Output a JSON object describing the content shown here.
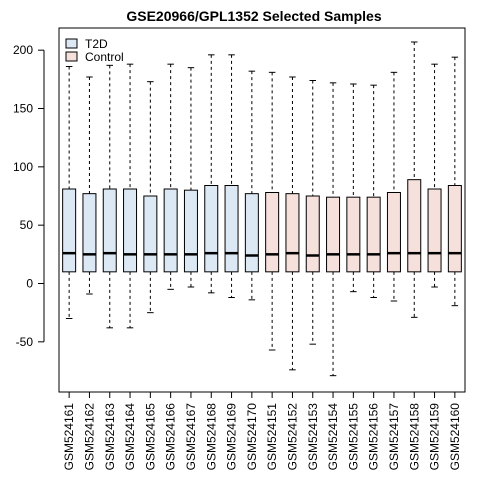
{
  "chart_data": {
    "type": "box",
    "title": "GSE20966/GPL1352 Selected Samples",
    "xlabel": "",
    "ylabel": "",
    "ylim": [
      -93,
      219
    ],
    "yticks": [
      -50,
      0,
      50,
      100,
      150,
      200
    ],
    "grid": false,
    "legend": {
      "placement": "top-left",
      "entries": [
        {
          "name": "T2D",
          "color": "#dce9f5"
        },
        {
          "name": "Control",
          "color": "#f6e0dc"
        }
      ]
    },
    "categories": [
      "GSM524161",
      "GSM524162",
      "GSM524163",
      "GSM524164",
      "GSM524165",
      "GSM524166",
      "GSM524167",
      "GSM524168",
      "GSM524169",
      "GSM524170",
      "GSM524151",
      "GSM524152",
      "GSM524153",
      "GSM524154",
      "GSM524155",
      "GSM524156",
      "GSM524157",
      "GSM524158",
      "GSM524159",
      "GSM524160"
    ],
    "groups": [
      "T2D",
      "T2D",
      "T2D",
      "T2D",
      "T2D",
      "T2D",
      "T2D",
      "T2D",
      "T2D",
      "T2D",
      "Control",
      "Control",
      "Control",
      "Control",
      "Control",
      "Control",
      "Control",
      "Control",
      "Control",
      "Control"
    ],
    "boxes": [
      {
        "min": -30,
        "q1": 10,
        "median": 26,
        "q3": 81,
        "max": 186
      },
      {
        "min": -9,
        "q1": 10,
        "median": 25,
        "q3": 77,
        "max": 177
      },
      {
        "min": -38,
        "q1": 10,
        "median": 26,
        "q3": 81,
        "max": 187
      },
      {
        "min": -38,
        "q1": 10,
        "median": 25,
        "q3": 81,
        "max": 188
      },
      {
        "min": -25,
        "q1": 10,
        "median": 25,
        "q3": 75,
        "max": 173
      },
      {
        "min": -5,
        "q1": 10,
        "median": 25,
        "q3": 81,
        "max": 188
      },
      {
        "min": -3,
        "q1": 10,
        "median": 25,
        "q3": 80,
        "max": 185
      },
      {
        "min": -8,
        "q1": 10,
        "median": 26,
        "q3": 84,
        "max": 196
      },
      {
        "min": -12,
        "q1": 10,
        "median": 26,
        "q3": 84,
        "max": 196
      },
      {
        "min": -14,
        "q1": 10,
        "median": 24,
        "q3": 77,
        "max": 182
      },
      {
        "min": -57,
        "q1": 10,
        "median": 25,
        "q3": 78,
        "max": 181
      },
      {
        "min": -74,
        "q1": 10,
        "median": 26,
        "q3": 77,
        "max": 177
      },
      {
        "min": -52,
        "q1": 10,
        "median": 24,
        "q3": 75,
        "max": 174
      },
      {
        "min": -79,
        "q1": 10,
        "median": 25,
        "q3": 74,
        "max": 172
      },
      {
        "min": -7,
        "q1": 10,
        "median": 25,
        "q3": 74,
        "max": 171
      },
      {
        "min": -12,
        "q1": 10,
        "median": 25,
        "q3": 74,
        "max": 170
      },
      {
        "min": -15,
        "q1": 10,
        "median": 26,
        "q3": 78,
        "max": 181
      },
      {
        "min": -29,
        "q1": 10,
        "median": 26,
        "q3": 89,
        "max": 207
      },
      {
        "min": -3,
        "q1": 10,
        "median": 26,
        "q3": 81,
        "max": 188
      },
      {
        "min": -19,
        "q1": 10,
        "median": 26,
        "q3": 84,
        "max": 194
      }
    ]
  }
}
